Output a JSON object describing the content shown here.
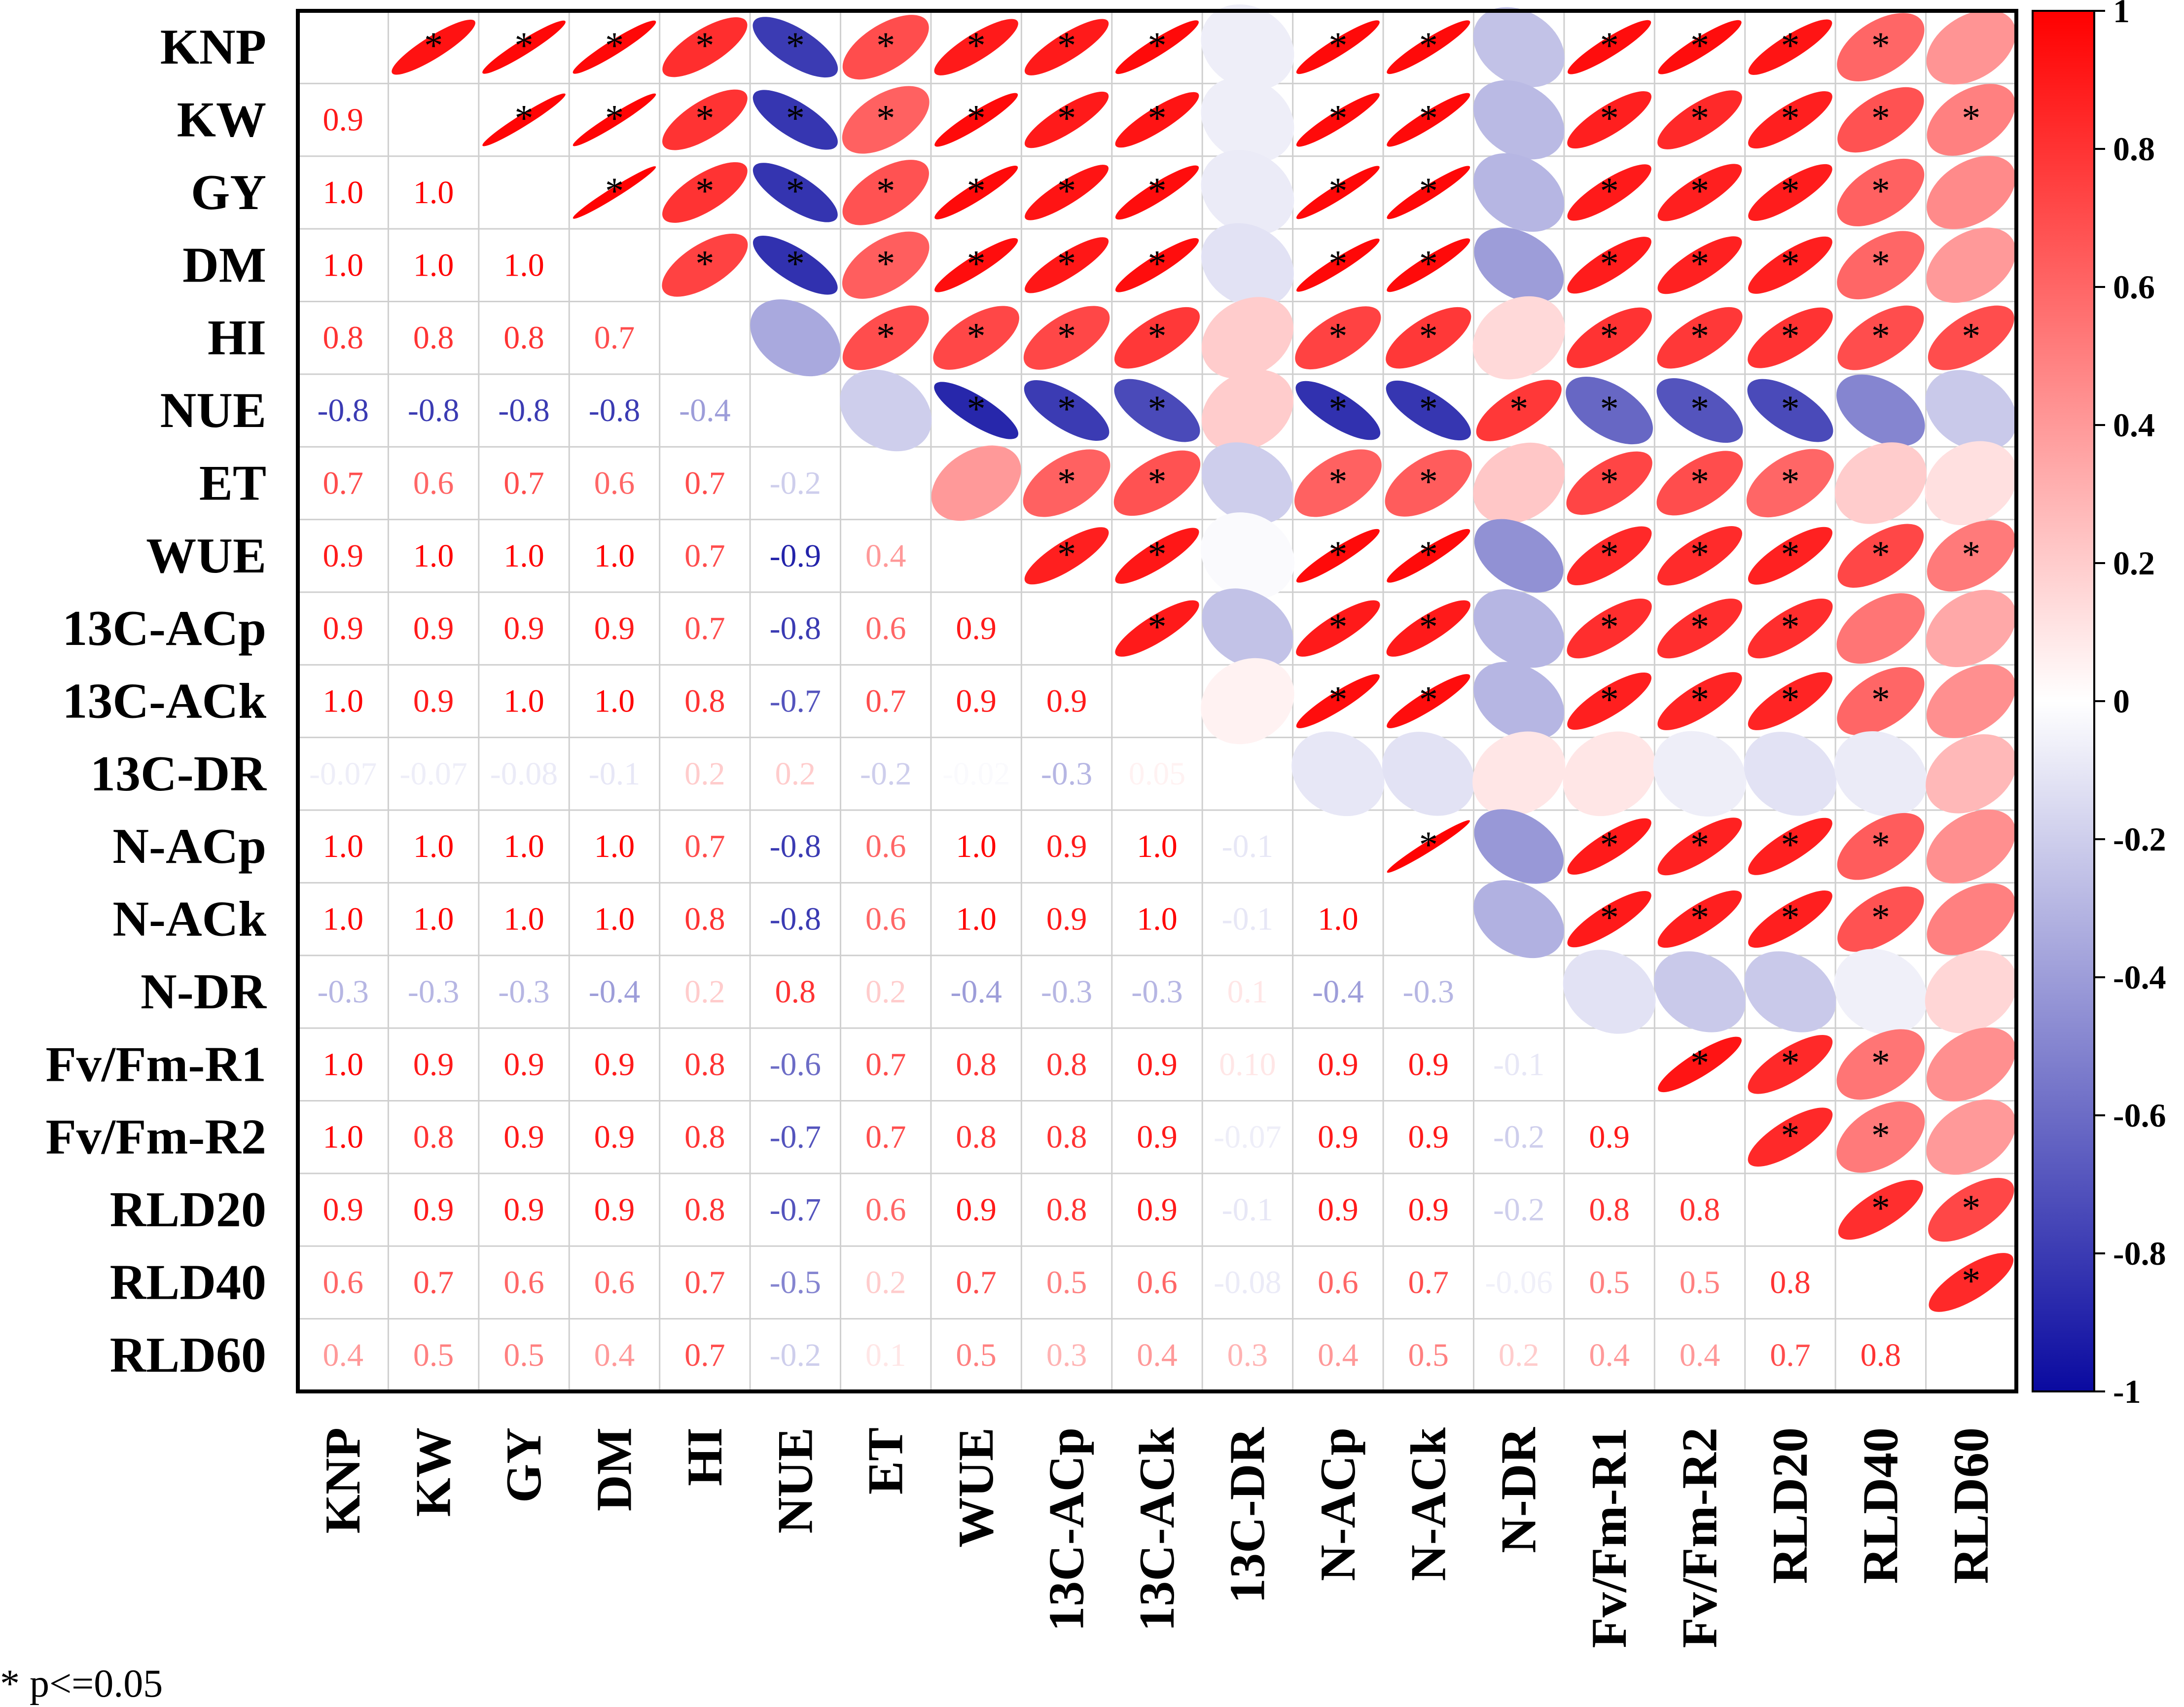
{
  "chart_data": {
    "type": "heatmap",
    "title": "",
    "variables": [
      "KNP",
      "KW",
      "GY",
      "DM",
      "HI",
      "NUE",
      "ET",
      "WUE",
      "13C-ACp",
      "13C-ACk",
      "13C-DR",
      "N-ACp",
      "N-ACk",
      "N-DR",
      "Fv/Fm-R1",
      "Fv/Fm-R2",
      "RLD20",
      "RLD40",
      "RLD60"
    ],
    "lower_triangle_labels": [
      [],
      [
        "0.9"
      ],
      [
        "1.0",
        "1.0"
      ],
      [
        "1.0",
        "1.0",
        "1.0"
      ],
      [
        "0.8",
        "0.8",
        "0.8",
        "0.7"
      ],
      [
        "-0.8",
        "-0.8",
        "-0.8",
        "-0.8",
        "-0.4"
      ],
      [
        "0.7",
        "0.6",
        "0.7",
        "0.6",
        "0.7",
        "-0.2"
      ],
      [
        "0.9",
        "1.0",
        "1.0",
        "1.0",
        "0.7",
        "-0.9",
        "0.4"
      ],
      [
        "0.9",
        "0.9",
        "0.9",
        "0.9",
        "0.7",
        "-0.8",
        "0.6",
        "0.9"
      ],
      [
        "1.0",
        "0.9",
        "1.0",
        "1.0",
        "0.8",
        "-0.7",
        "0.7",
        "0.9",
        "0.9"
      ],
      [
        "-0.07",
        "-0.07",
        "-0.08",
        "-0.1",
        "0.2",
        "0.2",
        "-0.2",
        "-0.02",
        "-0.3",
        "0.05"
      ],
      [
        "1.0",
        "1.0",
        "1.0",
        "1.0",
        "0.7",
        "-0.8",
        "0.6",
        "1.0",
        "0.9",
        "1.0",
        "-0.1"
      ],
      [
        "1.0",
        "1.0",
        "1.0",
        "1.0",
        "0.8",
        "-0.8",
        "0.6",
        "1.0",
        "0.9",
        "1.0",
        "-0.1",
        "1.0"
      ],
      [
        "-0.3",
        "-0.3",
        "-0.3",
        "-0.4",
        "0.2",
        "0.8",
        "0.2",
        "-0.4",
        "-0.3",
        "-0.3",
        "0.1",
        "-0.4",
        "-0.3"
      ],
      [
        "1.0",
        "0.9",
        "0.9",
        "0.9",
        "0.8",
        "-0.6",
        "0.7",
        "0.8",
        "0.8",
        "0.9",
        "0.10",
        "0.9",
        "0.9",
        "-0.1"
      ],
      [
        "1.0",
        "0.8",
        "0.9",
        "0.9",
        "0.8",
        "-0.7",
        "0.7",
        "0.8",
        "0.8",
        "0.9",
        "-0.07",
        "0.9",
        "0.9",
        "-0.2",
        "0.9"
      ],
      [
        "0.9",
        "0.9",
        "0.9",
        "0.9",
        "0.8",
        "-0.7",
        "0.6",
        "0.9",
        "0.8",
        "0.9",
        "-0.1",
        "0.9",
        "0.9",
        "-0.2",
        "0.8",
        "0.8"
      ],
      [
        "0.6",
        "0.7",
        "0.6",
        "0.6",
        "0.7",
        "-0.5",
        "0.2",
        "0.7",
        "0.5",
        "0.6",
        "-0.08",
        "0.6",
        "0.7",
        "-0.06",
        "0.5",
        "0.5",
        "0.8"
      ],
      [
        "0.4",
        "0.5",
        "0.5",
        "0.4",
        "0.7",
        "-0.2",
        "0.1",
        "0.5",
        "0.3",
        "0.4",
        "0.3",
        "0.4",
        "0.5",
        "0.2",
        "0.4",
        "0.4",
        "0.7",
        "0.8"
      ]
    ],
    "upper_values": [
      [],
      [
        0.93
      ],
      [
        0.97,
        0.98
      ],
      [
        0.97,
        0.98,
        0.99
      ],
      [
        0.82,
        0.8,
        0.8,
        0.74
      ],
      [
        -0.8,
        -0.82,
        -0.83,
        -0.84,
        -0.35
      ],
      [
        0.7,
        0.62,
        0.68,
        0.63,
        0.7,
        -0.2
      ],
      [
        0.9,
        0.96,
        0.96,
        0.95,
        0.72,
        -0.88,
        0.4
      ],
      [
        0.9,
        0.9,
        0.92,
        0.91,
        0.72,
        -0.8,
        0.62,
        0.88
      ],
      [
        0.96,
        0.92,
        0.95,
        0.95,
        0.78,
        -0.74,
        0.68,
        0.91,
        0.9
      ],
      [
        -0.07,
        -0.07,
        -0.08,
        -0.12,
        0.2,
        0.2,
        -0.2,
        -0.02,
        -0.25,
        0.05
      ],
      [
        0.96,
        0.96,
        0.97,
        0.97,
        0.74,
        -0.84,
        0.62,
        0.96,
        0.9,
        0.95,
        -0.1
      ],
      [
        0.96,
        0.96,
        0.97,
        0.96,
        0.78,
        -0.82,
        0.64,
        0.96,
        0.9,
        0.95,
        -0.12,
        0.99
      ],
      [
        -0.25,
        -0.28,
        -0.3,
        -0.4,
        0.15,
        0.78,
        0.22,
        -0.45,
        -0.3,
        -0.3,
        0.1,
        -0.42,
        -0.32
      ],
      [
        0.95,
        0.88,
        0.9,
        0.89,
        0.8,
        -0.62,
        0.73,
        0.84,
        0.82,
        0.88,
        0.1,
        0.9,
        0.9,
        -0.12
      ],
      [
        0.95,
        0.84,
        0.88,
        0.87,
        0.78,
        -0.7,
        0.7,
        0.83,
        0.82,
        0.86,
        -0.07,
        0.87,
        0.88,
        -0.22,
        0.92
      ],
      [
        0.92,
        0.88,
        0.89,
        0.88,
        0.8,
        -0.74,
        0.6,
        0.87,
        0.82,
        0.86,
        -0.12,
        0.88,
        0.88,
        -0.22,
        0.84,
        0.84
      ],
      [
        0.6,
        0.68,
        0.62,
        0.6,
        0.7,
        -0.5,
        0.2,
        0.72,
        0.54,
        0.6,
        -0.08,
        0.64,
        0.68,
        -0.06,
        0.54,
        0.52,
        0.82
      ],
      [
        0.42,
        0.5,
        0.46,
        0.4,
        0.7,
        -0.22,
        0.12,
        0.52,
        0.34,
        0.44,
        0.28,
        0.44,
        0.5,
        0.16,
        0.44,
        0.4,
        0.72,
        0.84
      ]
    ],
    "significant": [
      [],
      [
        1
      ],
      [
        1,
        1
      ],
      [
        1,
        1,
        1
      ],
      [
        1,
        1,
        1,
        1
      ],
      [
        1,
        1,
        1,
        1,
        0
      ],
      [
        1,
        1,
        1,
        1,
        1,
        0
      ],
      [
        1,
        1,
        1,
        1,
        1,
        1,
        0
      ],
      [
        1,
        1,
        1,
        1,
        1,
        1,
        1,
        1
      ],
      [
        1,
        1,
        1,
        1,
        1,
        1,
        1,
        1,
        1
      ],
      [
        0,
        0,
        0,
        0,
        0,
        0,
        0,
        0,
        0,
        0
      ],
      [
        1,
        1,
        1,
        1,
        1,
        1,
        1,
        1,
        1,
        1,
        0
      ],
      [
        1,
        1,
        1,
        1,
        1,
        1,
        1,
        1,
        1,
        1,
        0,
        1
      ],
      [
        0,
        0,
        0,
        0,
        0,
        1,
        0,
        0,
        0,
        0,
        0,
        0,
        0
      ],
      [
        1,
        1,
        1,
        1,
        1,
        1,
        1,
        1,
        1,
        1,
        0,
        1,
        1,
        0
      ],
      [
        1,
        1,
        1,
        1,
        1,
        1,
        1,
        1,
        1,
        1,
        0,
        1,
        1,
        0,
        1
      ],
      [
        1,
        1,
        1,
        1,
        1,
        1,
        1,
        1,
        1,
        1,
        0,
        1,
        1,
        0,
        1,
        1
      ],
      [
        1,
        1,
        1,
        1,
        1,
        0,
        0,
        1,
        0,
        1,
        0,
        1,
        1,
        0,
        1,
        1,
        1
      ],
      [
        0,
        1,
        0,
        0,
        1,
        0,
        0,
        1,
        0,
        0,
        0,
        0,
        0,
        0,
        0,
        0,
        1,
        1
      ]
    ],
    "color_scale": {
      "min": -1,
      "max": 1,
      "ticks": [
        "1",
        "0.8",
        "0.6",
        "0.4",
        "0.2",
        "0",
        "-0.2",
        "-0.4",
        "-0.6",
        "-0.8",
        "-1"
      ],
      "negative_color": "#0a0aa0",
      "zero_color": "#ffffff",
      "positive_color": "#ff0000"
    },
    "significance_marker": "*",
    "footnote": "* p<=0.05"
  }
}
